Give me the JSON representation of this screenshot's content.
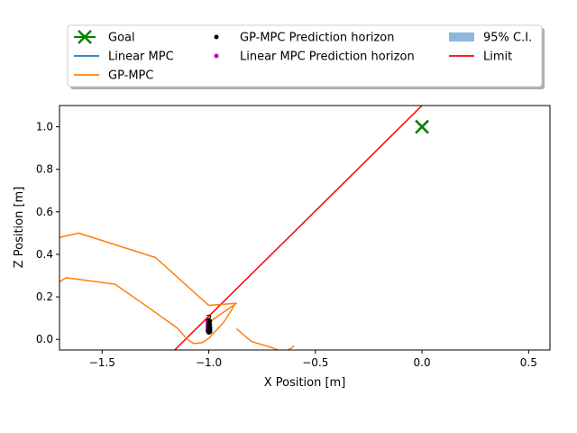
{
  "chart_data": {
    "type": "line",
    "xlabel": "X Position [m]",
    "ylabel": "Z Position [m]",
    "xlim": [
      -1.7,
      0.6
    ],
    "ylim": [
      -0.05,
      1.1
    ],
    "x_ticks": [
      -1.5,
      -1.0,
      -0.5,
      0.0,
      0.5
    ],
    "x_tick_labels": [
      "−1.5",
      "−1.0",
      "−0.5",
      "0.0",
      "0.5"
    ],
    "y_ticks": [
      0.0,
      0.2,
      0.4,
      0.6,
      0.8,
      1.0
    ],
    "y_tick_labels": [
      "0.0",
      "0.2",
      "0.4",
      "0.6",
      "0.8",
      "1.0"
    ],
    "grid": false,
    "legend_placement": "top-center, outside plot, 3 columns",
    "legend": [
      {
        "label": "Goal",
        "kind": "marker-x",
        "color": "#008000"
      },
      {
        "label": "Linear MPC",
        "kind": "line",
        "color": "#1f77b4"
      },
      {
        "label": "GP-MPC",
        "kind": "line",
        "color": "#ff7f0e"
      },
      {
        "label": "GP-MPC Prediction horizon",
        "kind": "dot",
        "color": "#000000"
      },
      {
        "label": "Linear MPC Prediction horizon",
        "kind": "dot",
        "color": "#bf00bf"
      },
      {
        "label": "95% C.I.",
        "kind": "patch",
        "color": "#8fb6dc"
      },
      {
        "label": "Limit",
        "kind": "line",
        "color": "#ff0000"
      }
    ],
    "goal": {
      "x": 0.0,
      "y": 1.0
    },
    "limit": {
      "x": [
        -1.16,
        0.0
      ],
      "y": [
        -0.05,
        1.1
      ]
    },
    "series": [
      {
        "name": "GP-MPC",
        "color": "#ff7f0e",
        "x": [
          -1.7,
          -1.61,
          -1.25,
          -1.0,
          -0.87,
          -1.0,
          -1.0
        ],
        "y": [
          0.48,
          0.5,
          0.385,
          0.16,
          0.17,
          0.08,
          0.04
        ]
      },
      {
        "name": "GP-MPC",
        "color": "#ff7f0e",
        "x": [
          -1.7,
          -1.67,
          -1.44,
          -1.29,
          -1.15,
          -1.1,
          -1.07,
          -1.03,
          -1.0,
          -0.93,
          -0.88
        ],
        "y": [
          0.27,
          0.29,
          0.26,
          0.155,
          0.055,
          0.0,
          -0.02,
          -0.015,
          0.005,
          0.08,
          0.16
        ]
      },
      {
        "name": "GP-MPC",
        "color": "#ff7f0e",
        "x": [
          -0.87,
          -0.8,
          -0.7,
          -0.65,
          -0.61,
          -0.6
        ],
        "y": [
          0.05,
          -0.01,
          -0.04,
          -0.06,
          -0.04,
          -0.03
        ]
      },
      {
        "name": "Linear MPC",
        "color": "#1f77b4",
        "x": [
          -1.0,
          -1.0
        ],
        "y": [
          0.04,
          0.05
        ]
      }
    ],
    "gp_prediction": {
      "x": [
        -0.995,
        -0.995,
        -0.995,
        -0.995,
        -0.995
      ],
      "y": [
        0.035,
        0.045,
        0.055,
        0.07,
        0.085
      ]
    },
    "linear_prediction": {
      "x": [
        -1.005,
        -1.005,
        -1.005,
        -1.005
      ],
      "y": [
        0.04,
        0.055,
        0.07,
        0.085
      ]
    },
    "confidence_interval": {
      "x": [
        -1.0,
        -0.98
      ],
      "y_low": [
        0.035,
        0.03
      ],
      "y_high": [
        0.06,
        0.065
      ]
    },
    "annotations": [
      {
        "text": "0",
        "x": -1.0,
        "y": 0.04
      },
      {
        "text": "1",
        "x": -1.0,
        "y": 0.055
      },
      {
        "text": "2",
        "x": -1.0,
        "y": 0.075
      },
      {
        "text": "3",
        "x": -1.0,
        "y": 0.095
      }
    ]
  }
}
